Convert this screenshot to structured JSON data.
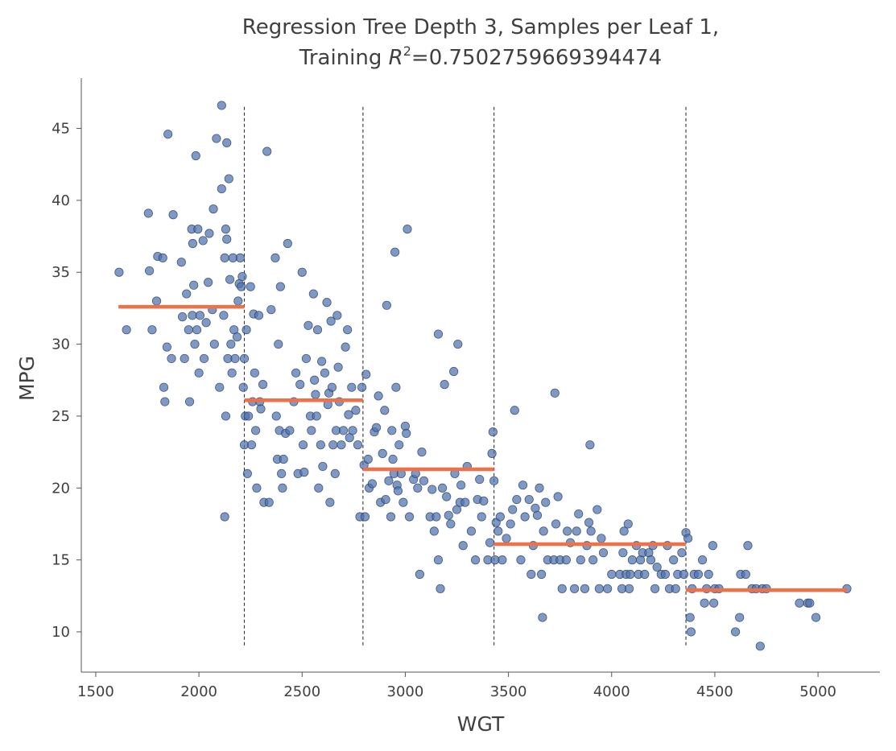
{
  "chart_data": {
    "type": "scatter",
    "title": {
      "line1": "Regression Tree Depth 3, Samples per Leaf 1,",
      "line2_prefix": "Training ",
      "line2_symbol": "R",
      "line2_exponent": "2",
      "line2_suffix": "=0.7502759669394474"
    },
    "xlabel": "WGT",
    "ylabel": "MPG",
    "xlim": [
      1430,
      5300
    ],
    "ylim": [
      7.2,
      48.5
    ],
    "xticks": [
      1500,
      2000,
      2500,
      3000,
      3500,
      4000,
      4500,
      5000
    ],
    "yticks": [
      10,
      15,
      20,
      25,
      30,
      35,
      40,
      45
    ],
    "grid": false,
    "colors": {
      "points": "#4c72b0",
      "points_edge": "#2d3f5f",
      "prediction": "#f07048",
      "split_lines": "#333333"
    },
    "split_lines": {
      "x": [
        2220,
        2795,
        3430,
        4360
      ],
      "y_range": [
        8.9,
        46.5
      ]
    },
    "prediction_steps": [
      {
        "x_start": 1610,
        "x_end": 2220,
        "y": 32.6
      },
      {
        "x_start": 2220,
        "x_end": 2795,
        "y": 26.1
      },
      {
        "x_start": 2795,
        "x_end": 3430,
        "y": 21.3
      },
      {
        "x_start": 3430,
        "x_end": 4360,
        "y": 16.1
      },
      {
        "x_start": 4360,
        "x_end": 5140,
        "y": 12.9
      }
    ],
    "points": [
      [
        1613,
        35.0
      ],
      [
        1649,
        31.0
      ],
      [
        1755,
        39.1
      ],
      [
        1760,
        35.1
      ],
      [
        1773,
        31.0
      ],
      [
        1795,
        33.0
      ],
      [
        1800,
        36.1
      ],
      [
        1825,
        36.0
      ],
      [
        1830,
        27.0
      ],
      [
        1835,
        26.0
      ],
      [
        1845,
        29.8
      ],
      [
        1850,
        44.6
      ],
      [
        1867,
        29.0
      ],
      [
        1875,
        39.0
      ],
      [
        1915,
        35.7
      ],
      [
        1920,
        31.9
      ],
      [
        1930,
        29.0
      ],
      [
        1940,
        33.5
      ],
      [
        1950,
        31.0
      ],
      [
        1955,
        26.0
      ],
      [
        1965,
        38.0
      ],
      [
        1968,
        32.0
      ],
      [
        1970,
        37.0
      ],
      [
        1975,
        34.1
      ],
      [
        1980,
        30.0
      ],
      [
        1985,
        43.1
      ],
      [
        1990,
        31.0
      ],
      [
        1995,
        38.0
      ],
      [
        2000,
        28.0
      ],
      [
        2005,
        32.0
      ],
      [
        2020,
        37.2
      ],
      [
        2025,
        29.0
      ],
      [
        2035,
        31.5
      ],
      [
        2045,
        34.3
      ],
      [
        2050,
        37.7
      ],
      [
        2065,
        32.4
      ],
      [
        2070,
        39.4
      ],
      [
        2075,
        30.0
      ],
      [
        2085,
        44.3
      ],
      [
        2100,
        27.0
      ],
      [
        2110,
        40.8
      ],
      [
        2110,
        46.6
      ],
      [
        2120,
        32.0
      ],
      [
        2125,
        36.0
      ],
      [
        2125,
        18.0
      ],
      [
        2130,
        38.0
      ],
      [
        2130,
        25.0
      ],
      [
        2135,
        44.0
      ],
      [
        2135,
        37.3
      ],
      [
        2140,
        29.0
      ],
      [
        2145,
        41.5
      ],
      [
        2150,
        34.5
      ],
      [
        2155,
        30.0
      ],
      [
        2160,
        28.0
      ],
      [
        2165,
        36.0
      ],
      [
        2170,
        31.0
      ],
      [
        2175,
        29.0
      ],
      [
        2185,
        30.5
      ],
      [
        2190,
        33.0
      ],
      [
        2195,
        34.2
      ],
      [
        2200,
        36.0
      ],
      [
        2205,
        34.0
      ],
      [
        2210,
        34.7
      ],
      [
        2215,
        27.0
      ],
      [
        2220,
        23.0
      ],
      [
        2220,
        29.0
      ],
      [
        2225,
        25.0
      ],
      [
        2230,
        31.0
      ],
      [
        2235,
        21.0
      ],
      [
        2240,
        25.0
      ],
      [
        2250,
        34.0
      ],
      [
        2255,
        23.0
      ],
      [
        2260,
        26.0
      ],
      [
        2265,
        32.1
      ],
      [
        2270,
        28.0
      ],
      [
        2275,
        24.0
      ],
      [
        2280,
        20.0
      ],
      [
        2290,
        32.0
      ],
      [
        2295,
        26.0
      ],
      [
        2300,
        25.5
      ],
      [
        2310,
        27.2
      ],
      [
        2315,
        19.0
      ],
      [
        2330,
        43.4
      ],
      [
        2340,
        19.0
      ],
      [
        2350,
        32.4
      ],
      [
        2370,
        36.0
      ],
      [
        2375,
        25.0
      ],
      [
        2380,
        22.0
      ],
      [
        2385,
        30.0
      ],
      [
        2390,
        24.0
      ],
      [
        2395,
        34.0
      ],
      [
        2400,
        21.0
      ],
      [
        2405,
        20.0
      ],
      [
        2410,
        22.0
      ],
      [
        2420,
        23.8
      ],
      [
        2430,
        37.0
      ],
      [
        2440,
        24.0
      ],
      [
        2460,
        26.0
      ],
      [
        2470,
        28.0
      ],
      [
        2480,
        21.0
      ],
      [
        2490,
        27.2
      ],
      [
        2500,
        35.0
      ],
      [
        2505,
        23.0
      ],
      [
        2510,
        21.1
      ],
      [
        2520,
        29.0
      ],
      [
        2530,
        31.3
      ],
      [
        2540,
        25.0
      ],
      [
        2545,
        24.0
      ],
      [
        2555,
        33.5
      ],
      [
        2560,
        27.5
      ],
      [
        2565,
        26.5
      ],
      [
        2570,
        25.0
      ],
      [
        2575,
        31.0
      ],
      [
        2580,
        20.0
      ],
      [
        2590,
        23.0
      ],
      [
        2595,
        28.8
      ],
      [
        2600,
        21.5
      ],
      [
        2610,
        28.0
      ],
      [
        2620,
        32.9
      ],
      [
        2625,
        25.8
      ],
      [
        2630,
        26.6
      ],
      [
        2635,
        19.0
      ],
      [
        2640,
        31.6
      ],
      [
        2645,
        27.0
      ],
      [
        2650,
        23.0
      ],
      [
        2660,
        21.0
      ],
      [
        2665,
        24.0
      ],
      [
        2670,
        32.0
      ],
      [
        2675,
        28.4
      ],
      [
        2680,
        26.0
      ],
      [
        2690,
        23.0
      ],
      [
        2700,
        24.0
      ],
      [
        2710,
        29.8
      ],
      [
        2720,
        31.0
      ],
      [
        2725,
        25.1
      ],
      [
        2730,
        23.5
      ],
      [
        2740,
        27.0
      ],
      [
        2745,
        24.0
      ],
      [
        2760,
        25.4
      ],
      [
        2770,
        23.0
      ],
      [
        2780,
        18.0
      ],
      [
        2790,
        27.0
      ],
      [
        2800,
        21.6
      ],
      [
        2805,
        18.0
      ],
      [
        2810,
        27.9
      ],
      [
        2820,
        22.0
      ],
      [
        2825,
        20.0
      ],
      [
        2840,
        20.3
      ],
      [
        2850,
        23.9
      ],
      [
        2860,
        24.2
      ],
      [
        2870,
        26.4
      ],
      [
        2880,
        19.0
      ],
      [
        2890,
        22.4
      ],
      [
        2900,
        25.4
      ],
      [
        2905,
        19.2
      ],
      [
        2910,
        32.7
      ],
      [
        2920,
        20.5
      ],
      [
        2930,
        18.0
      ],
      [
        2935,
        24.0
      ],
      [
        2940,
        22.0
      ],
      [
        2945,
        21.0
      ],
      [
        2950,
        36.4
      ],
      [
        2955,
        27.0
      ],
      [
        2960,
        20.2
      ],
      [
        2965,
        19.8
      ],
      [
        2970,
        23.0
      ],
      [
        2980,
        21.0
      ],
      [
        2990,
        19.0
      ],
      [
        3000,
        24.3
      ],
      [
        3005,
        23.8
      ],
      [
        3010,
        38.0
      ],
      [
        3020,
        18.0
      ],
      [
        3040,
        20.6
      ],
      [
        3050,
        21.0
      ],
      [
        3060,
        20.0
      ],
      [
        3070,
        14.0
      ],
      [
        3080,
        22.5
      ],
      [
        3090,
        20.5
      ],
      [
        3120,
        18.0
      ],
      [
        3130,
        19.9
      ],
      [
        3140,
        17.0
      ],
      [
        3150,
        18.0
      ],
      [
        3160,
        15.0
      ],
      [
        3160,
        30.7
      ],
      [
        3170,
        13.0
      ],
      [
        3180,
        20.0
      ],
      [
        3190,
        27.2
      ],
      [
        3200,
        19.4
      ],
      [
        3210,
        18.1
      ],
      [
        3220,
        17.5
      ],
      [
        3235,
        28.1
      ],
      [
        3240,
        21.0
      ],
      [
        3250,
        18.5
      ],
      [
        3255,
        30.0
      ],
      [
        3265,
        19.0
      ],
      [
        3270,
        20.2
      ],
      [
        3280,
        16.0
      ],
      [
        3290,
        19.0
      ],
      [
        3300,
        21.5
      ],
      [
        3320,
        17.0
      ],
      [
        3340,
        15.0
      ],
      [
        3350,
        19.2
      ],
      [
        3360,
        20.6
      ],
      [
        3370,
        18.0
      ],
      [
        3380,
        19.1
      ],
      [
        3400,
        15.0
      ],
      [
        3410,
        16.2
      ],
      [
        3420,
        22.4
      ],
      [
        3425,
        23.9
      ],
      [
        3430,
        20.5
      ],
      [
        3435,
        15.0
      ],
      [
        3440,
        17.6
      ],
      [
        3450,
        17.0
      ],
      [
        3460,
        18.0
      ],
      [
        3470,
        15.0
      ],
      [
        3490,
        16.5
      ],
      [
        3510,
        17.5
      ],
      [
        3520,
        18.5
      ],
      [
        3530,
        25.4
      ],
      [
        3540,
        19.2
      ],
      [
        3560,
        15.0
      ],
      [
        3570,
        20.2
      ],
      [
        3580,
        18.0
      ],
      [
        3600,
        19.2
      ],
      [
        3610,
        14.0
      ],
      [
        3620,
        16.0
      ],
      [
        3630,
        18.6
      ],
      [
        3640,
        18.1
      ],
      [
        3650,
        20.0
      ],
      [
        3660,
        14.0
      ],
      [
        3665,
        11.0
      ],
      [
        3670,
        17.0
      ],
      [
        3680,
        19.0
      ],
      [
        3690,
        15.0
      ],
      [
        3720,
        15.0
      ],
      [
        3725,
        26.6
      ],
      [
        3730,
        17.5
      ],
      [
        3740,
        19.4
      ],
      [
        3750,
        15.0
      ],
      [
        3760,
        13.0
      ],
      [
        3780,
        15.0
      ],
      [
        3785,
        17.0
      ],
      [
        3800,
        16.2
      ],
      [
        3820,
        13.0
      ],
      [
        3830,
        17.0
      ],
      [
        3840,
        18.2
      ],
      [
        3850,
        15.0
      ],
      [
        3870,
        13.0
      ],
      [
        3880,
        16.0
      ],
      [
        3890,
        17.6
      ],
      [
        3895,
        23.0
      ],
      [
        3900,
        17.0
      ],
      [
        3910,
        15.0
      ],
      [
        3930,
        18.5
      ],
      [
        3940,
        13.0
      ],
      [
        3950,
        16.5
      ],
      [
        3960,
        15.5
      ],
      [
        3980,
        13.0
      ],
      [
        4000,
        14.0
      ],
      [
        4040,
        14.0
      ],
      [
        4050,
        13.0
      ],
      [
        4055,
        15.5
      ],
      [
        4060,
        17.0
      ],
      [
        4070,
        14.0
      ],
      [
        4080,
        17.5
      ],
      [
        4085,
        13.0
      ],
      [
        4090,
        14.0
      ],
      [
        4100,
        15.0
      ],
      [
        4120,
        16.0
      ],
      [
        4130,
        14.0
      ],
      [
        4140,
        15.0
      ],
      [
        4150,
        15.5
      ],
      [
        4160,
        14.0
      ],
      [
        4180,
        15.5
      ],
      [
        4190,
        15.0
      ],
      [
        4200,
        16.0
      ],
      [
        4210,
        13.0
      ],
      [
        4220,
        14.5
      ],
      [
        4240,
        14.0
      ],
      [
        4260,
        14.0
      ],
      [
        4270,
        16.0
      ],
      [
        4280,
        13.0
      ],
      [
        4300,
        15.0
      ],
      [
        4310,
        13.0
      ],
      [
        4320,
        14.0
      ],
      [
        4340,
        15.5
      ],
      [
        4350,
        14.0
      ],
      [
        4360,
        16.9
      ],
      [
        4370,
        16.5
      ],
      [
        4380,
        11.0
      ],
      [
        4385,
        10.0
      ],
      [
        4390,
        13.0
      ],
      [
        4400,
        14.0
      ],
      [
        4420,
        14.0
      ],
      [
        4440,
        15.0
      ],
      [
        4450,
        12.0
      ],
      [
        4460,
        13.0
      ],
      [
        4470,
        14.0
      ],
      [
        4490,
        16.0
      ],
      [
        4495,
        12.0
      ],
      [
        4500,
        13.0
      ],
      [
        4520,
        13.0
      ],
      [
        4600,
        10.0
      ],
      [
        4620,
        11.0
      ],
      [
        4625,
        14.0
      ],
      [
        4650,
        14.0
      ],
      [
        4660,
        16.0
      ],
      [
        4680,
        13.0
      ],
      [
        4700,
        13.0
      ],
      [
        4720,
        9.0
      ],
      [
        4730,
        13.0
      ],
      [
        4750,
        13.0
      ],
      [
        4910,
        12.0
      ],
      [
        4950,
        12.0
      ],
      [
        4960,
        12.0
      ],
      [
        4990,
        11.0
      ],
      [
        5140,
        13.0
      ]
    ]
  }
}
